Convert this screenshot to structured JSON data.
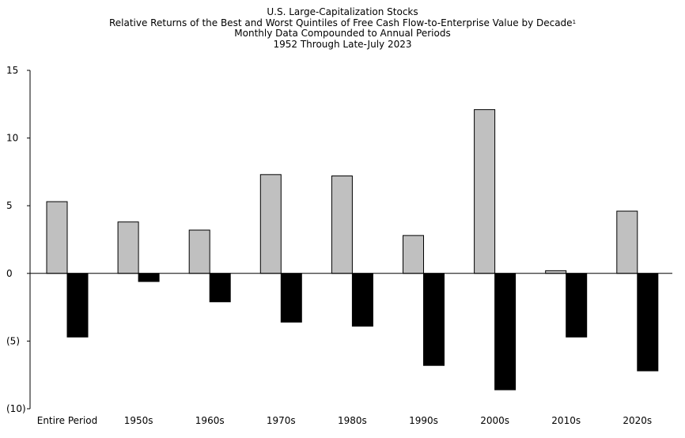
{
  "chart_data": {
    "type": "bar",
    "title": "U.S. Large-Capitalization Stocks",
    "subtitle_lines": [
      "Relative Returns of the Best and Worst Quintiles of Free Cash Flow-to-Enterprise Value by Decade",
      "Monthly Data Compounded to Annual Periods",
      "1952 Through Late-July 2023"
    ],
    "footnote_marker": "1",
    "categories": [
      "Entire Period",
      "1950s",
      "1960s",
      "1970s",
      "1980s",
      "1990s",
      "2000s",
      "2010s",
      "2020s"
    ],
    "series": [
      {
        "color": "#c0c0c0",
        "values": [
          5.3,
          3.8,
          3.2,
          7.3,
          7.2,
          2.8,
          12.1,
          0.2,
          4.6
        ]
      },
      {
        "color": "#000000",
        "values": [
          -4.7,
          -0.6,
          -2.1,
          -3.6,
          -3.9,
          -6.8,
          -8.6,
          -4.7,
          -7.2
        ]
      }
    ],
    "ylim": [
      -10,
      15
    ],
    "yticks": [
      15,
      10,
      5,
      0,
      -5,
      -10
    ],
    "ytick_labels": [
      "15",
      "10",
      "5",
      "0",
      "(5)",
      "(10)"
    ],
    "grid": false,
    "legend": "none"
  }
}
